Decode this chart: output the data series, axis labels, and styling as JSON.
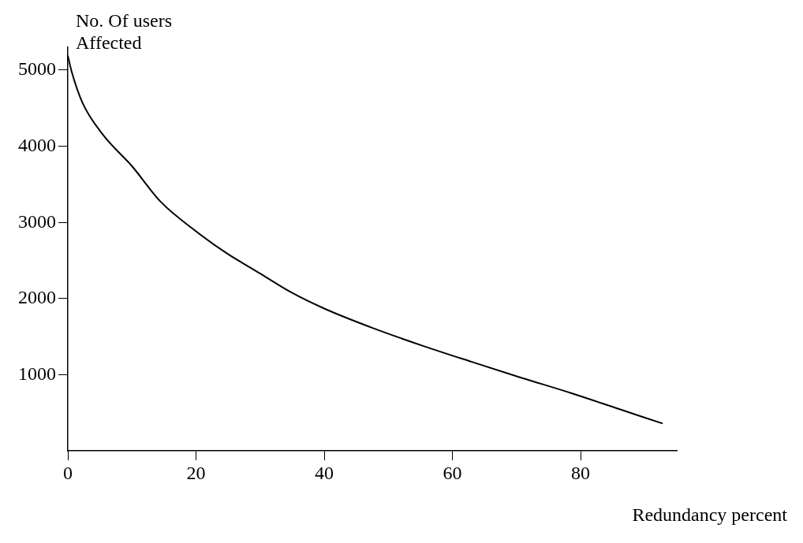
{
  "chart_data": {
    "type": "line",
    "xlabel": "Redundancy percent",
    "ylabel": "No. Of users Affected",
    "x": [
      0,
      0.6,
      2.3,
      5.5,
      10,
      14.5,
      19.6,
      24.7,
      29.8,
      34.9,
      40,
      47.7,
      55.4,
      63,
      70.8,
      78.5,
      86,
      92.8
    ],
    "series": [
      {
        "color": "#000000",
        "values": [
          5190,
          4980,
          4570,
          4150,
          3740,
          3270,
          2910,
          2600,
          2340,
          2080,
          1870,
          1610,
          1380,
          1170,
          960,
          760,
          550,
          360
        ]
      }
    ],
    "xlim": [
      0,
      95
    ],
    "xticks": [
      0,
      20,
      40,
      60,
      80
    ],
    "ylim": [
      0,
      5300
    ],
    "yticks": [
      1000,
      2000,
      3000,
      4000,
      5000
    ],
    "grid": false,
    "legend": false,
    "marker": "none",
    "line_style": "solid"
  }
}
